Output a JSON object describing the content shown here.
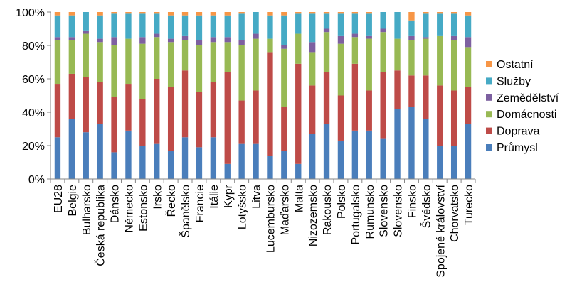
{
  "chart_data": {
    "type": "bar",
    "stacked": true,
    "percent_axis": true,
    "ylim": [
      0,
      100
    ],
    "y_ticks": [
      "0%",
      "20%",
      "40%",
      "60%",
      "80%",
      "100%"
    ],
    "grid": false,
    "legend_position": "right",
    "categories": [
      "EU28",
      "Belgie",
      "Bulharsko",
      "Česká republika",
      "Dánsko",
      "Německo",
      "Estonsko",
      "Irsko",
      "Řecko",
      "Španělsko",
      "Francie",
      "Itálie",
      "Kypr",
      "Lotyšsko",
      "Litva",
      "Lucembursko",
      "Maďarsko",
      "Malta",
      "Nizozemsko",
      "Rakousko",
      "Polsko",
      "Portugalsko",
      "Rumunsko",
      "Slovensko",
      "Slovensko",
      "Finsko",
      "Švédsko",
      "Spojené království",
      "Chorvatsko",
      "Turecko"
    ],
    "series": [
      {
        "name": "Průmysl",
        "color": "#4a7ebb",
        "values": [
          25,
          36,
          28,
          33,
          16,
          29,
          20,
          21,
          17,
          25,
          19,
          25,
          9,
          21,
          21,
          14,
          17,
          9,
          27,
          33,
          23,
          29,
          29,
          24,
          42,
          43,
          36,
          20,
          20,
          33
        ]
      },
      {
        "name": "Doprava",
        "color": "#be4b48",
        "values": [
          32,
          27,
          33,
          25,
          33,
          28,
          28,
          39,
          38,
          40,
          33,
          33,
          55,
          26,
          32,
          62,
          26,
          60,
          29,
          31,
          27,
          40,
          24,
          40,
          23,
          19,
          26,
          36,
          33,
          22
        ]
      },
      {
        "name": "Domácnosti",
        "color": "#98b954",
        "values": [
          26,
          20,
          26,
          24,
          31,
          27,
          33,
          25,
          27,
          18,
          28,
          24,
          18,
          33,
          31,
          8,
          35,
          18,
          20,
          24,
          31,
          16,
          31,
          24,
          19,
          21,
          22,
          30,
          30,
          24
        ]
      },
      {
        "name": "Zemědělství",
        "color": "#7d60a0",
        "values": [
          2,
          2,
          2,
          2,
          5,
          0,
          4,
          2,
          2,
          3,
          3,
          3,
          3,
          3,
          3,
          0,
          2,
          0,
          6,
          2,
          5,
          2,
          2,
          2,
          0,
          3,
          1,
          0,
          3,
          6
        ]
      },
      {
        "name": "Služby",
        "color": "#46aac5",
        "values": [
          13,
          13,
          11,
          14,
          14,
          15,
          14,
          12,
          14,
          12,
          15,
          13,
          13,
          16,
          13,
          14,
          18,
          12,
          17,
          9,
          13,
          12,
          13,
          10,
          16,
          9,
          14,
          13,
          13,
          13
        ]
      },
      {
        "name": "Ostatní",
        "color": "#f79646",
        "values": [
          2,
          2,
          0,
          2,
          1,
          1,
          1,
          1,
          2,
          2,
          2,
          2,
          2,
          1,
          0,
          2,
          2,
          1,
          1,
          1,
          1,
          1,
          1,
          0,
          0,
          5,
          1,
          1,
          1,
          2
        ]
      }
    ]
  }
}
